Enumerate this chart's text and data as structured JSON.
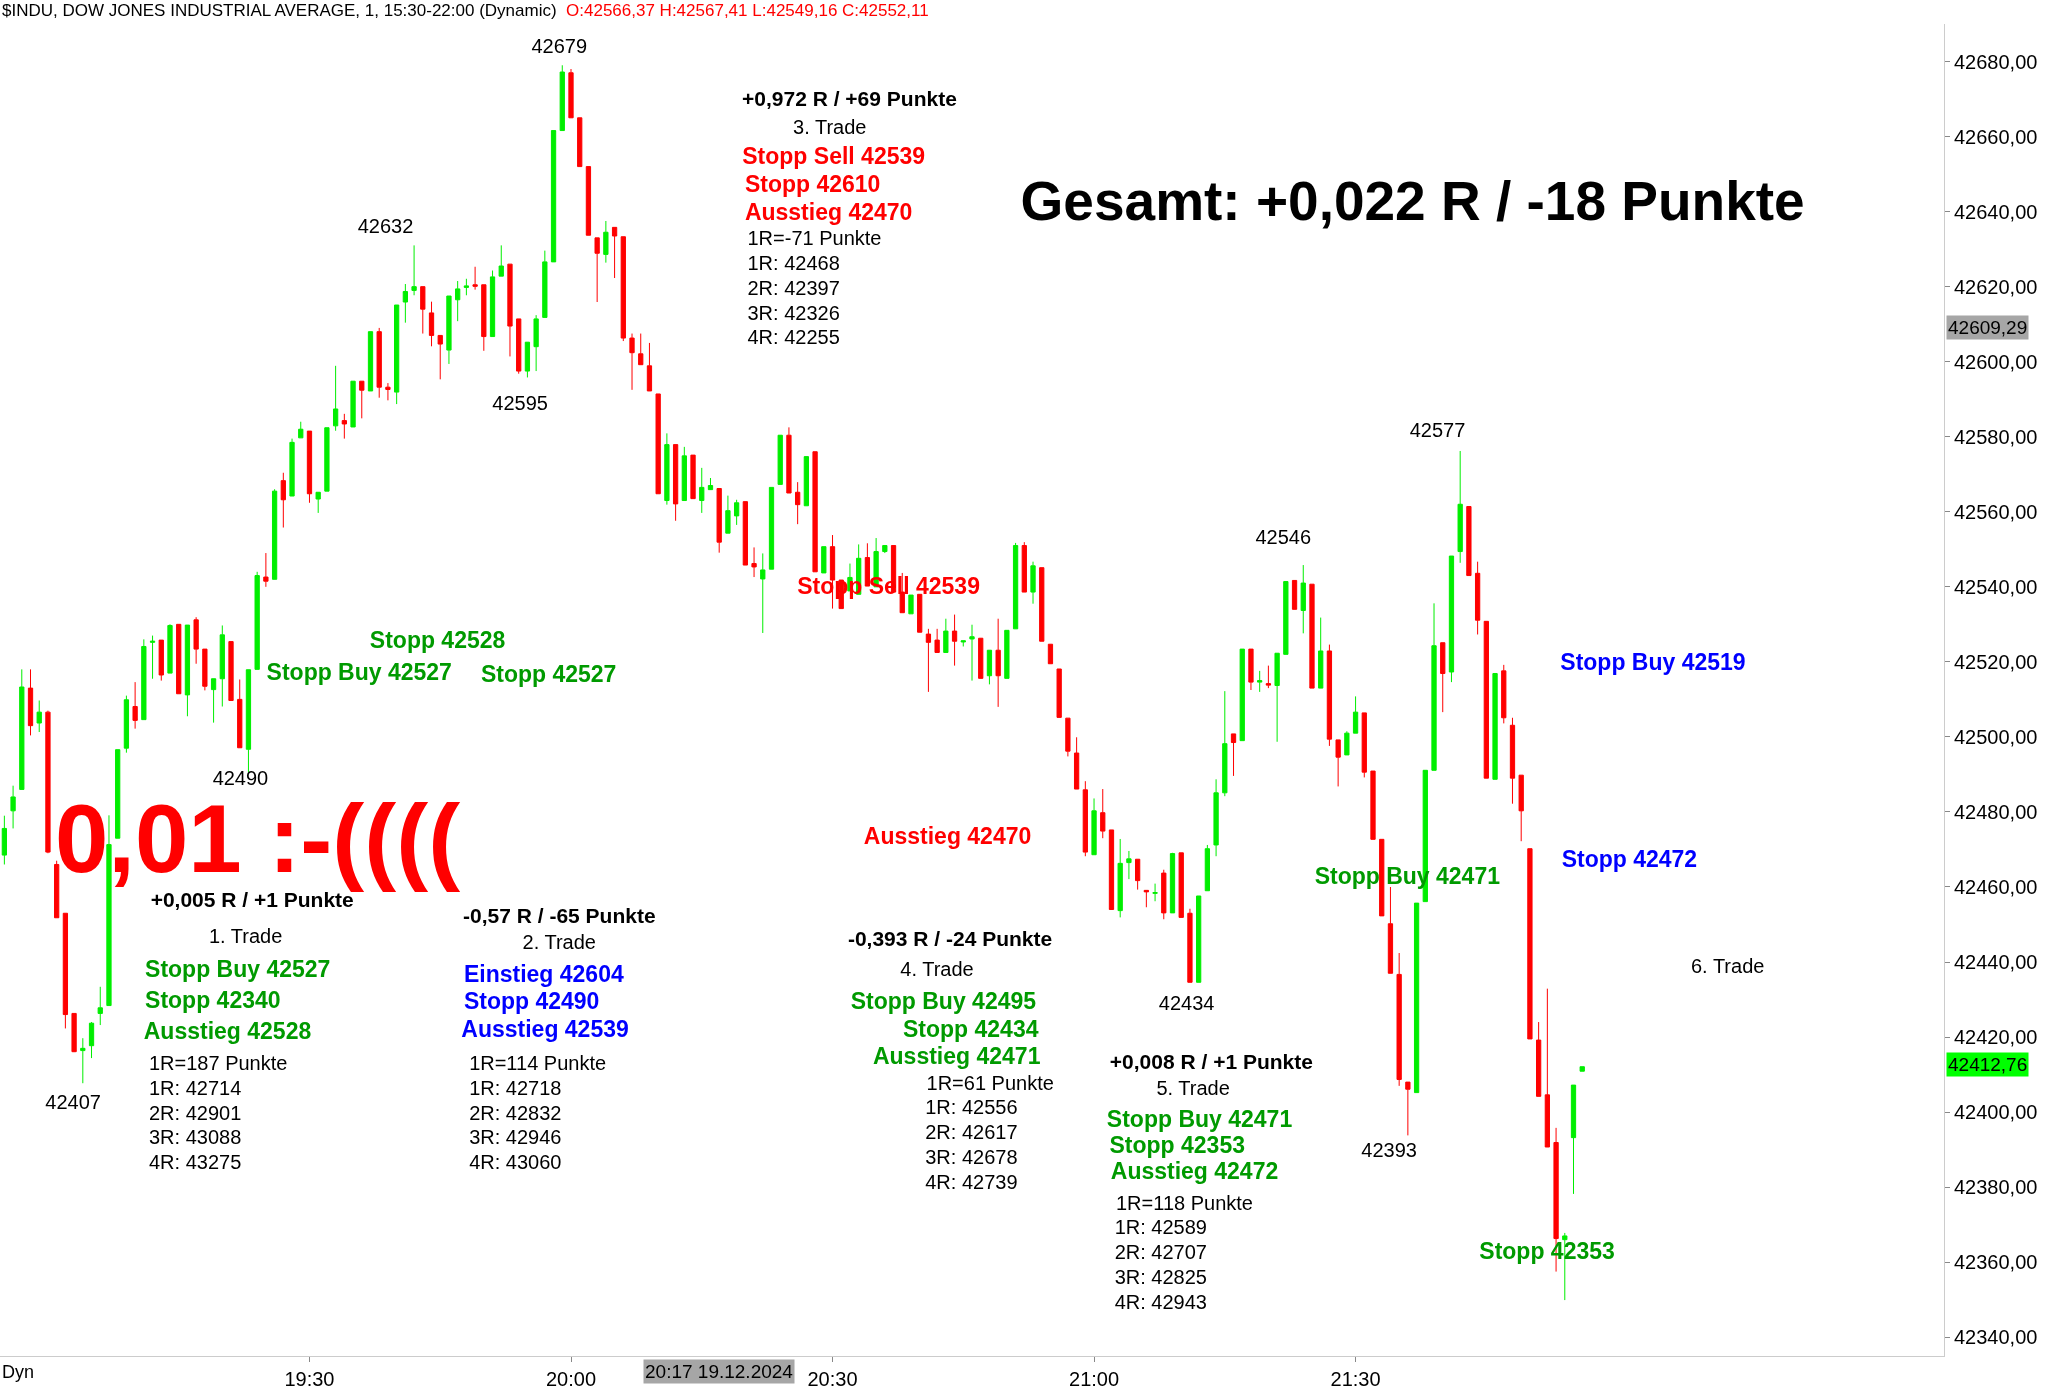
{
  "chart_data": {
    "type": "candlestick",
    "title": "$INDU, DOW JONES INDUSTRIAL AVERAGE, 1, 15:30-22:00 (Dynamic)",
    "subtitle": "O:42566,37 H:42567,41 L:42549,16 C:42552,11",
    "x": [
      "2024-12-19T18:55",
      "2024-12-19T18:56",
      "2024-12-19T18:57",
      "2024-12-19T18:58",
      "2024-12-19T18:59",
      "2024-12-19T19:00",
      "2024-12-19T19:01",
      "2024-12-19T19:02",
      "2024-12-19T19:03",
      "2024-12-19T19:04",
      "2024-12-19T19:05",
      "2024-12-19T19:06",
      "2024-12-19T19:07",
      "2024-12-19T19:08",
      "2024-12-19T19:09",
      "2024-12-19T19:10",
      "2024-12-19T19:11",
      "2024-12-19T19:12",
      "2024-12-19T19:13",
      "2024-12-19T19:14",
      "2024-12-19T19:15",
      "2024-12-19T19:16",
      "2024-12-19T19:17",
      "2024-12-19T19:18",
      "2024-12-19T19:19",
      "2024-12-19T19:20",
      "2024-12-19T19:21",
      "2024-12-19T19:22",
      "2024-12-19T19:23",
      "2024-12-19T19:24",
      "2024-12-19T19:25",
      "2024-12-19T19:26",
      "2024-12-19T19:27",
      "2024-12-19T19:28",
      "2024-12-19T19:29",
      "2024-12-19T19:30",
      "2024-12-19T19:31",
      "2024-12-19T19:32",
      "2024-12-19T19:33",
      "2024-12-19T19:34",
      "2024-12-19T19:35",
      "2024-12-19T19:36",
      "2024-12-19T19:37",
      "2024-12-19T19:38",
      "2024-12-19T19:39",
      "2024-12-19T19:40",
      "2024-12-19T19:41",
      "2024-12-19T19:42",
      "2024-12-19T19:43",
      "2024-12-19T19:44",
      "2024-12-19T19:45",
      "2024-12-19T19:46",
      "2024-12-19T19:47",
      "2024-12-19T19:48",
      "2024-12-19T19:49",
      "2024-12-19T19:50",
      "2024-12-19T19:51",
      "2024-12-19T19:52",
      "2024-12-19T19:53",
      "2024-12-19T19:54",
      "2024-12-19T19:55",
      "2024-12-19T19:56",
      "2024-12-19T19:57",
      "2024-12-19T19:58",
      "2024-12-19T19:59",
      "2024-12-19T20:00",
      "2024-12-19T20:01",
      "2024-12-19T20:02",
      "2024-12-19T20:03",
      "2024-12-19T20:04",
      "2024-12-19T20:05",
      "2024-12-19T20:06",
      "2024-12-19T20:07",
      "2024-12-19T20:08",
      "2024-12-19T20:09",
      "2024-12-19T20:10",
      "2024-12-19T20:11",
      "2024-12-19T20:12",
      "2024-12-19T20:13",
      "2024-12-19T20:14",
      "2024-12-19T20:15",
      "2024-12-19T20:16",
      "2024-12-19T20:17",
      "2024-12-19T20:18",
      "2024-12-19T20:19",
      "2024-12-19T20:20",
      "2024-12-19T20:21",
      "2024-12-19T20:22",
      "2024-12-19T20:23",
      "2024-12-19T20:24",
      "2024-12-19T20:25",
      "2024-12-19T20:26",
      "2024-12-19T20:27",
      "2024-12-19T20:28",
      "2024-12-19T20:29",
      "2024-12-19T20:30",
      "2024-12-19T20:31",
      "2024-12-19T20:32",
      "2024-12-19T20:33",
      "2024-12-19T20:34",
      "2024-12-19T20:35",
      "2024-12-19T20:36",
      "2024-12-19T20:37",
      "2024-12-19T20:38",
      "2024-12-19T20:39",
      "2024-12-19T20:40",
      "2024-12-19T20:41",
      "2024-12-19T20:42",
      "2024-12-19T20:43",
      "2024-12-19T20:44",
      "2024-12-19T20:45",
      "2024-12-19T20:46",
      "2024-12-19T20:47",
      "2024-12-19T20:48",
      "2024-12-19T20:49",
      "2024-12-19T20:50",
      "2024-12-19T20:51",
      "2024-12-19T20:52",
      "2024-12-19T20:53",
      "2024-12-19T20:54",
      "2024-12-19T20:55",
      "2024-12-19T20:56",
      "2024-12-19T20:57",
      "2024-12-19T20:58",
      "2024-12-19T20:59",
      "2024-12-19T21:00",
      "2024-12-19T21:01",
      "2024-12-19T21:02",
      "2024-12-19T21:03",
      "2024-12-19T21:04",
      "2024-12-19T21:05",
      "2024-12-19T21:06",
      "2024-12-19T21:07",
      "2024-12-19T21:08",
      "2024-12-19T21:09",
      "2024-12-19T21:10",
      "2024-12-19T21:11",
      "2024-12-19T21:12",
      "2024-12-19T21:13",
      "2024-12-19T21:14",
      "2024-12-19T21:15",
      "2024-12-19T21:16",
      "2024-12-19T21:17",
      "2024-12-19T21:18",
      "2024-12-19T21:19",
      "2024-12-19T21:20",
      "2024-12-19T21:21",
      "2024-12-19T21:22",
      "2024-12-19T21:23",
      "2024-12-19T21:24",
      "2024-12-19T21:25",
      "2024-12-19T21:26",
      "2024-12-19T21:27",
      "2024-12-19T21:28",
      "2024-12-19T21:29",
      "2024-12-19T21:30",
      "2024-12-19T21:31",
      "2024-12-19T21:32",
      "2024-12-19T21:33",
      "2024-12-19T21:34",
      "2024-12-19T21:35",
      "2024-12-19T21:36",
      "2024-12-19T21:37",
      "2024-12-19T21:38",
      "2024-12-19T21:39",
      "2024-12-19T21:40",
      "2024-12-19T21:41",
      "2024-12-19T21:42",
      "2024-12-19T21:43",
      "2024-12-19T21:44",
      "2024-12-19T21:45",
      "2024-12-19T21:46",
      "2024-12-19T21:47",
      "2024-12-19T21:48",
      "2024-12-19T21:49",
      "2024-12-19T21:50",
      "2024-12-19T21:51",
      "2024-12-19T21:52",
      "2024-12-19T21:53",
      "2024-12-19T21:54",
      "2024-12-19T21:55",
      "2024-12-19T21:56"
    ],
    "ohlc": [
      [
        42468.5,
        42479,
        42466,
        42475.6
      ],
      [
        42480.3,
        42487,
        42475.6,
        42484
      ],
      [
        42486,
        42518,
        42486,
        42513.3
      ],
      [
        42513,
        42518,
        42500.4,
        42503
      ],
      [
        42503.7,
        42509.7,
        42501.3,
        42506.6
      ],
      [
        42506.6,
        42507,
        42469,
        42469.3
      ],
      [
        42466,
        42467,
        42451.8,
        42451.8
      ],
      [
        42453,
        42453,
        42422.3,
        42426
      ],
      [
        42426.3,
        42426.3,
        42416,
        42416.1
      ],
      [
        42416.4,
        42419.7,
        42407.7,
        42417
      ],
      [
        42417.7,
        42424,
        42414.4,
        42423.7
      ],
      [
        42426.3,
        42433.4,
        42423.2,
        42427.8
      ],
      [
        42428.4,
        42479.1,
        42428.4,
        42471.3
      ],
      [
        42473,
        42496.6,
        42473,
        42496.6
      ],
      [
        42497,
        42511,
        42495.8,
        42509.9
      ],
      [
        42508.1,
        42514.6,
        42502.2,
        42504.4
      ],
      [
        42504.6,
        42526,
        42504.6,
        42524.1
      ],
      [
        42525.2,
        42527,
        42515.5,
        42525.5
      ],
      [
        42525.8,
        42525.8,
        42515,
        42516.5
      ],
      [
        42517,
        42530,
        42517,
        42529.7
      ],
      [
        42530,
        42530,
        42511.5,
        42511.5
      ],
      [
        42511.2,
        42529.8,
        42505.5,
        42529.8
      ],
      [
        42531.2,
        42531.9,
        42519.5,
        42523.4
      ],
      [
        42523.4,
        42523.4,
        42512.4,
        42513.5
      ],
      [
        42512.6,
        42515.5,
        42503.8,
        42515.5
      ],
      [
        42515.5,
        42529.7,
        42508.1,
        42527.2
      ],
      [
        42525.4,
        42525.4,
        42509.7,
        42509.7
      ],
      [
        42510,
        42515.3,
        42497.1,
        42497.1
      ],
      [
        42496.7,
        42517.9,
        42490.6,
        42517.9
      ],
      [
        42518,
        42544,
        42518,
        42543
      ],
      [
        42542.6,
        42549,
        42540,
        42541.5
      ],
      [
        42542,
        42566,
        42542,
        42565.5
      ],
      [
        42568.3,
        42570.4,
        42555.8,
        42563.2
      ],
      [
        42564.2,
        42579.5,
        42564.2,
        42578.5
      ],
      [
        42579.7,
        42584,
        42579.7,
        42582
      ],
      [
        42581.5,
        42581.5,
        42562.4,
        42564.8
      ],
      [
        42563.4,
        42565.2,
        42559.7,
        42565.2
      ],
      [
        42565.5,
        42582.4,
        42565.5,
        42582.4
      ],
      [
        42582.9,
        42598.9,
        42581.6,
        42587.4
      ],
      [
        42584.3,
        42586.1,
        42579.5,
        42583.4
      ],
      [
        42582.6,
        42594.8,
        42582.6,
        42594.8
      ],
      [
        42594.8,
        42594.8,
        42584.9,
        42592.4
      ],
      [
        42592.2,
        42608,
        42592.2,
        42608
      ],
      [
        42608,
        42609,
        42590.4,
        42593.2
      ],
      [
        42593.2,
        42594.3,
        42589.7,
        42592.6
      ],
      [
        42591.9,
        42615.1,
        42588.7,
        42615.1
      ],
      [
        42615.9,
        42620.7,
        42610.4,
        42618.7
      ],
      [
        42619,
        42631,
        42617.7,
        42620
      ],
      [
        42620,
        42620,
        42607.5,
        42614
      ],
      [
        42613,
        42616,
        42604.1,
        42607
      ],
      [
        42607,
        42607,
        42595.3,
        42604.7
      ],
      [
        42603.1,
        42617.5,
        42599.4,
        42617.5
      ],
      [
        42616.5,
        42621.5,
        42610.8,
        42619.4
      ],
      [
        42619.8,
        42622.1,
        42617.7,
        42620.2
      ],
      [
        42620.5,
        42625.3,
        42619.2,
        42620.1
      ],
      [
        42620.5,
        42620.5,
        42602.9,
        42606.7
      ],
      [
        42606.7,
        42624.3,
        42606.7,
        42622.6
      ],
      [
        42622.8,
        42631,
        42622.8,
        42625.5
      ],
      [
        42626,
        42626,
        42601.4,
        42609.5
      ],
      [
        42611.4,
        42611.4,
        42596.8,
        42597.5
      ],
      [
        42597.5,
        42605.2,
        42595.8,
        42605.2
      ],
      [
        42604,
        42612.4,
        42597.5,
        42611.4
      ],
      [
        42611.8,
        42629.6,
        42611.8,
        42626.6
      ],
      [
        42626.6,
        42661.6,
        42626.6,
        42661.6
      ],
      [
        42661.6,
        42679,
        42661.6,
        42677.2
      ],
      [
        42677,
        42678,
        42665,
        42665
      ],
      [
        42665,
        42665,
        42652,
        42652
      ],
      [
        42652,
        42652,
        42633.7,
        42633.7
      ],
      [
        42633,
        42633,
        42615.9,
        42628.9
      ],
      [
        42628.6,
        42637.5,
        42626.4,
        42634.5
      ],
      [
        42635.8,
        42635.8,
        42622.3,
        42633.5
      ],
      [
        42633.3,
        42633.3,
        42605.5,
        42606.3
      ],
      [
        42606.3,
        42607.5,
        42592.5,
        42602.4
      ],
      [
        42602.1,
        42607.5,
        42599.2,
        42599.2
      ],
      [
        42598.9,
        42605,
        42592.2,
        42592.2
      ],
      [
        42591.4,
        42591.4,
        42564.8,
        42564.8
      ],
      [
        42563,
        42580.9,
        42561.9,
        42577.9
      ],
      [
        42577.9,
        42577.9,
        42557.6,
        42562.1
      ],
      [
        42563,
        42577.3,
        42563,
        42574.9
      ],
      [
        42575.1,
        42575.1,
        42563.5,
        42563.5
      ],
      [
        42563,
        42571.7,
        42559.7,
        42566.5
      ],
      [
        42565.9,
        42569,
        42565.9,
        42567
      ],
      [
        42566.2,
        42566.2,
        42549.1,
        42551.9
      ],
      [
        42554.3,
        42564.3,
        42554.3,
        42560.3
      ],
      [
        42558.9,
        42563.2,
        42556.5,
        42562.4
      ],
      [
        42562.7,
        42562.7,
        42545.8,
        42545.8
      ],
      [
        42546.2,
        42550.5,
        42542.6,
        42545.3
      ],
      [
        42542.1,
        42548.9,
        42527.7,
        42544.5
      ],
      [
        42544.7,
        42566.5,
        42544.7,
        42566.5
      ],
      [
        42567.3,
        42580.4,
        42567.3,
        42580.4
      ],
      [
        42580.4,
        42582.5,
        42565,
        42565
      ],
      [
        42565.2,
        42567.9,
        42556.7,
        42561.9
      ],
      [
        42561.6,
        42574.7,
        42561.6,
        42574.7
      ],
      [
        42576,
        42576,
        42544,
        42544
      ],
      [
        42543.7,
        42550.7,
        42543.7,
        42550.7
      ],
      [
        42550.7,
        42553.8,
        42534.2,
        42541.8
      ],
      [
        42541.8,
        42541.8,
        42534.2,
        42534.2
      ],
      [
        42538.9,
        42546.2,
        42538.9,
        42542.5
      ],
      [
        42538,
        42551.3,
        42538,
        42547.6
      ],
      [
        42547.8,
        42551.6,
        42540.2,
        42540.2
      ],
      [
        42540,
        42553,
        42540,
        42549.4
      ],
      [
        42549.4,
        42551,
        42549,
        42551
      ],
      [
        42551,
        42551,
        42538.6,
        42538.6
      ],
      [
        42538.6,
        42543.7,
        42533.1,
        42533.1
      ],
      [
        42532.8,
        42537.8,
        42532.8,
        42537.8
      ],
      [
        42538,
        42538,
        42527.9,
        42527.9
      ],
      [
        42527.4,
        42528.8,
        42512,
        42525.2
      ],
      [
        42525.8,
        42528.8,
        42522.5,
        42522.5
      ],
      [
        42522.5,
        42531.5,
        42522.5,
        42528.2
      ],
      [
        42528.2,
        42532.6,
        42519,
        42525.5
      ],
      [
        42525.3,
        42525.6,
        42524.1,
        42525.6
      ],
      [
        42526.1,
        42529.9,
        42515,
        42526.7
      ],
      [
        42526.3,
        42526.3,
        42515.6,
        42515.6
      ],
      [
        42516.3,
        42523.1,
        42514,
        42523.1
      ],
      [
        42523.1,
        42531.5,
        42508,
        42516.3
      ],
      [
        42515.6,
        42528.4,
        42515.6,
        42528.4
      ],
      [
        42528.8,
        42551.7,
        42528.8,
        42551
      ],
      [
        42551,
        42551.9,
        42538.6,
        42538.6
      ],
      [
        42538.6,
        42546.7,
        42535.5,
        42545.6
      ],
      [
        42545.1,
        42545.1,
        42525.5,
        42525.5
      ],
      [
        42524.7,
        42524.7,
        42519.5,
        42519.5
      ],
      [
        42518.1,
        42518.1,
        42505.2,
        42505.2
      ],
      [
        42505,
        42505,
        42494.8,
        42496.2
      ],
      [
        42495.7,
        42499.9,
        42486.1,
        42486.1
      ],
      [
        42485.9,
        42488.2,
        42468.2,
        42469.3
      ],
      [
        42468.6,
        42483.6,
        42468.6,
        42480.3
      ],
      [
        42479.8,
        42486.1,
        42473,
        42474.9
      ],
      [
        42475.2,
        42475.2,
        42454,
        42454
      ],
      [
        42453.7,
        42472.8,
        42451.9,
        42466.3
      ],
      [
        42466.5,
        42469.6,
        42462.1,
        42467.5
      ],
      [
        42467.4,
        42467.4,
        42459.3,
        42461.7
      ],
      [
        42459.1,
        42459.1,
        42454.6,
        42458.7
      ],
      [
        42458.3,
        42460.9,
        42456.2,
        42458.5
      ],
      [
        42463.7,
        42464.6,
        42451.4,
        42453.1
      ],
      [
        42453.1,
        42469.1,
        42453.1,
        42468.9
      ],
      [
        42469.1,
        42469.1,
        42451.9,
        42451.9
      ],
      [
        42453,
        42454.2,
        42434.6,
        42434.6
      ],
      [
        42434.6,
        42457.6,
        42434.6,
        42457.6
      ],
      [
        42459,
        42471.2,
        42459,
        42470.2
      ],
      [
        42471.2,
        42488.7,
        42468.2,
        42485.1
      ],
      [
        42485.1,
        42512.2,
        42484.2,
        42498.2
      ],
      [
        42500.8,
        42500.8,
        42489.6,
        42498.5
      ],
      [
        42499,
        42523.4,
        42499,
        42523.4
      ],
      [
        42523.4,
        42523.4,
        42512.5,
        42514.6
      ],
      [
        42514.6,
        42517.6,
        42512,
        42515
      ],
      [
        42514.2,
        42519,
        42513,
        42513.8
      ],
      [
        42513.7,
        42522.3,
        42498.7,
        42522.3
      ],
      [
        42522,
        42541.4,
        42522,
        42541.4
      ],
      [
        42541.7,
        42541.7,
        42534,
        42534
      ],
      [
        42533.7,
        42545.8,
        42527.6,
        42541
      ],
      [
        42540.7,
        42540.7,
        42513,
        42513
      ],
      [
        42513,
        42531.8,
        42513,
        42522.9
      ],
      [
        42522.9,
        42524.6,
        42497.6,
        42499.4
      ],
      [
        42499.2,
        42499.2,
        42486.8,
        42494.6
      ],
      [
        42495.2,
        42501.5,
        42495.2,
        42501
      ],
      [
        42501,
        42510.8,
        42501,
        42506.6
      ],
      [
        42506.4,
        42506.4,
        42489.2,
        42490.6
      ],
      [
        42490.9,
        42490.9,
        42472.7,
        42472.7
      ],
      [
        42472.7,
        42472.7,
        42452.3,
        42452.3
      ],
      [
        42450.2,
        42460,
        42437,
        42437
      ],
      [
        42436.7,
        42442.4,
        42407,
        42408.7
      ],
      [
        42408,
        42408,
        42393.8,
        42406.1
      ],
      [
        42405.2,
        42455.7,
        42405.2,
        42455.7
      ],
      [
        42456.1,
        42491.1,
        42456.1,
        42491.1
      ],
      [
        42491.1,
        42535.6,
        42491.1,
        42524.3
      ],
      [
        42525.1,
        42525.1,
        42506.6,
        42516.9
      ],
      [
        42517.3,
        42548.2,
        42514.6,
        42548.2
      ],
      [
        42549.4,
        42576.2,
        42546.4,
        42562
      ],
      [
        42561.4,
        42561.4,
        42543,
        42543
      ],
      [
        42543.6,
        42546.7,
        42527.3,
        42531.1
      ],
      [
        42530.8,
        42530.8,
        42489,
        42489
      ],
      [
        42488.7,
        42516.9,
        42488.7,
        42516.9
      ],
      [
        42517.6,
        42519.2,
        42503.6,
        42505.1
      ],
      [
        42503.1,
        42505.1,
        42482.2,
        42489
      ],
      [
        42489.8,
        42489.8,
        42472.2,
        42480.3
      ],
      [
        42470.2,
        42470.2,
        42419.5,
        42419.5
      ],
      [
        42419.2,
        42424,
        42404.2,
        42404.2
      ],
      [
        42404.6,
        42432.9,
        42390.7,
        42390.7
      ],
      [
        42391.9,
        42395.8,
        42357.5,
        42366.3
      ],
      [
        42366,
        42367.8,
        42349.9,
        42367
      ],
      [
        42393.2,
        42407.2,
        42378.2,
        42407.2
      ],
      [
        42410.9,
        42412.1,
        42410.9,
        42412.1
      ]
    ],
    "xlim": [
      "2024-12-19T18:54:30",
      "2024-12-19T22:37:30"
    ],
    "xticks": [
      {
        "value": "2024-12-19T19:30",
        "label": "19:30"
      },
      {
        "value": "2024-12-19T20:00",
        "label": "20:00"
      },
      {
        "value": "2024-12-19T20:30",
        "label": "20:30"
      },
      {
        "value": "2024-12-19T21:00",
        "label": "21:00"
      },
      {
        "value": "2024-12-19T21:30",
        "label": "21:30"
      }
    ],
    "ylim": [
      42335,
      42690
    ],
    "yticks": [
      {
        "value": 42340,
        "label": "42340,00"
      },
      {
        "value": 42360,
        "label": "42360,00"
      },
      {
        "value": 42380,
        "label": "42380,00"
      },
      {
        "value": 42400,
        "label": "42400,00"
      },
      {
        "value": 42420,
        "label": "42420,00"
      },
      {
        "value": 42440,
        "label": "42440,00"
      },
      {
        "value": 42460,
        "label": "42460,00"
      },
      {
        "value": 42480,
        "label": "42480,00"
      },
      {
        "value": 42500,
        "label": "42500,00"
      },
      {
        "value": 42520,
        "label": "42520,00"
      },
      {
        "value": 42540,
        "label": "42540,00"
      },
      {
        "value": 42560,
        "label": "42560,00"
      },
      {
        "value": 42580,
        "label": "42580,00"
      },
      {
        "value": 42600,
        "label": "42600,00"
      },
      {
        "value": 42620,
        "label": "42620,00"
      },
      {
        "value": 42640,
        "label": "42640,00"
      },
      {
        "value": 42660,
        "label": "42660,00"
      },
      {
        "value": 42680,
        "label": "42680,00"
      }
    ],
    "grid": false,
    "annotations": [
      "Gesamt: +0,022 R / -18 Punkte",
      "0,01 :-((((",
      "42679",
      "42632",
      "42595",
      "42490",
      "42407",
      "42434",
      "42546",
      "42577",
      "42393",
      "+0,972 R / +69 Punkte",
      "3. Trade",
      "Stopp Sell 42539",
      "Stopp 42610",
      "Ausstieg 42470",
      "1R=-71 Punkte",
      "1R: 42468",
      "2R: 42397",
      "3R: 42326",
      "4R: 42255",
      "+0,005 R / +1 Punkte",
      "1. Trade",
      "Stopp Buy 42527",
      "Stopp 42340",
      "Ausstieg 42528",
      "1R=187 Punkte",
      "1R: 42714",
      "2R: 42901",
      "3R: 43088",
      "4R: 43275",
      "-0,57 R / -65 Punkte",
      "2. Trade",
      "Einstieg 42604",
      "Stopp 42490",
      "Ausstieg 42539",
      "1R=114 Punkte",
      "1R: 42718",
      "2R: 42832",
      "3R: 42946",
      "4R: 43060",
      "-0,393 R / -24 Punkte",
      "4. Trade",
      "Stopp Buy 42495",
      "Stopp 42434",
      "Ausstieg 42471",
      "1R=61 Punkte",
      "1R: 42556",
      "2R: 42617",
      "3R: 42678",
      "4R: 42739",
      "+0,008 R / +1 Punkte",
      "5. Trade",
      "Stopp Buy 42471",
      "Stopp 42353",
      "Ausstieg 42472",
      "1R=118 Punkte",
      "1R: 42589",
      "2R: 42707",
      "3R: 42825",
      "4R: 42943",
      "6. Trade",
      "Stopp Buy 42519",
      "Stopp 42472",
      "Stopp 42528",
      "Stopp Buy 42527",
      "Stopp 42527",
      "Stopp Sell 42539",
      "Ausstieg 42470",
      "Stopp Buy 42471",
      "Stopp 42353",
      "20:17 19.12.2024",
      "42609,29",
      "42412,76",
      "Dyn"
    ]
  }
}
